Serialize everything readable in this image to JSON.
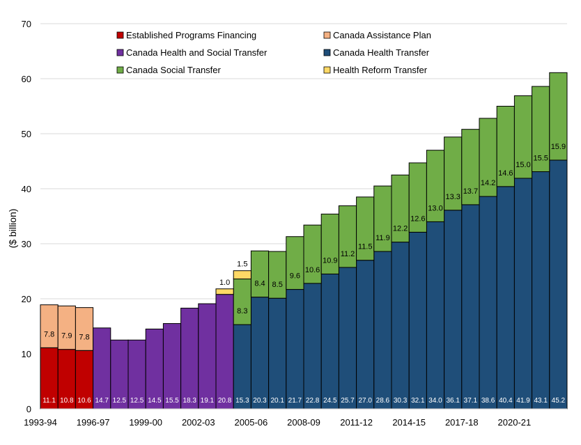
{
  "chart_data": {
    "type": "bar",
    "stacked": true,
    "title": "",
    "xlabel": "",
    "ylabel": "($ billion)",
    "ylim": [
      0,
      70
    ],
    "yticks": [
      0,
      10,
      20,
      30,
      40,
      50,
      60,
      70
    ],
    "grid": "horizontal",
    "legend_position": "top",
    "categories": [
      "1993-94",
      "1994-95",
      "1995-96",
      "1996-97",
      "1997-98",
      "1998-99",
      "1999-00",
      "2000-01",
      "2001-02",
      "2002-03",
      "2003-04",
      "2004-05",
      "2005-06",
      "2006-07",
      "2007-08",
      "2008-09",
      "2009-10",
      "2010-11",
      "2011-12",
      "2012-13",
      "2013-14",
      "2014-15",
      "2015-16",
      "2016-17",
      "2017-18",
      "2018-19",
      "2019-20",
      "2020-21",
      "2021-22",
      "2022-23"
    ],
    "xtick_labels": [
      "1993-94",
      "1996-97",
      "1999-00",
      "2002-03",
      "2005-06",
      "2008-09",
      "2011-12",
      "2014-15",
      "2017-18",
      "2020-21"
    ],
    "xtick_indices": [
      0,
      3,
      6,
      9,
      12,
      15,
      18,
      21,
      24,
      27
    ],
    "series": [
      {
        "name": "Established Programs Financing",
        "color": "#C00000",
        "values": [
          11.1,
          10.8,
          10.6,
          null,
          null,
          null,
          null,
          null,
          null,
          null,
          null,
          null,
          null,
          null,
          null,
          null,
          null,
          null,
          null,
          null,
          null,
          null,
          null,
          null,
          null,
          null,
          null,
          null,
          null,
          null
        ],
        "labels": [
          "11.1",
          "10.8",
          "10.6",
          null,
          null,
          null,
          null,
          null,
          null,
          null,
          null,
          null,
          null,
          null,
          null,
          null,
          null,
          null,
          null,
          null,
          null,
          null,
          null,
          null,
          null,
          null,
          null,
          null,
          null,
          null
        ]
      },
      {
        "name": "Canada Assistance Plan",
        "color": "#F4B183",
        "values": [
          7.8,
          7.9,
          7.8,
          null,
          null,
          null,
          null,
          null,
          null,
          null,
          null,
          null,
          null,
          null,
          null,
          null,
          null,
          null,
          null,
          null,
          null,
          null,
          null,
          null,
          null,
          null,
          null,
          null,
          null,
          null
        ],
        "labels": [
          "7.8",
          "7.9",
          "7.8",
          null,
          null,
          null,
          null,
          null,
          null,
          null,
          null,
          null,
          null,
          null,
          null,
          null,
          null,
          null,
          null,
          null,
          null,
          null,
          null,
          null,
          null,
          null,
          null,
          null,
          null,
          null
        ]
      },
      {
        "name": "Canada Health and Social Transfer",
        "color": "#7030A0",
        "values": [
          null,
          null,
          null,
          14.7,
          12.5,
          12.5,
          14.5,
          15.5,
          18.3,
          19.1,
          20.8,
          null,
          null,
          null,
          null,
          null,
          null,
          null,
          null,
          null,
          null,
          null,
          null,
          null,
          null,
          null,
          null,
          null,
          null,
          null
        ],
        "labels": [
          null,
          null,
          null,
          "14.7",
          "12.5",
          "12.5",
          "14.5",
          "15.5",
          "18.3",
          "19.1",
          "20.8",
          null,
          null,
          null,
          null,
          null,
          null,
          null,
          null,
          null,
          null,
          null,
          null,
          null,
          null,
          null,
          null,
          null,
          null,
          null
        ]
      },
      {
        "name": "Canada Health Transfer",
        "color": "#1F4E79",
        "values": [
          null,
          null,
          null,
          null,
          null,
          null,
          null,
          null,
          null,
          null,
          null,
          15.3,
          20.3,
          20.1,
          21.7,
          22.8,
          24.5,
          25.7,
          27.0,
          28.6,
          30.3,
          32.1,
          34.0,
          36.1,
          37.1,
          38.6,
          40.4,
          41.9,
          43.1,
          45.2
        ],
        "labels": [
          null,
          null,
          null,
          null,
          null,
          null,
          null,
          null,
          null,
          null,
          null,
          "15.3",
          "20.3",
          "20.1",
          "21.7",
          "22.8",
          "24.5",
          "25.7",
          "27.0",
          "28.6",
          "30.3",
          "32.1",
          "34.0",
          "36.1",
          "37.1",
          "38.6",
          "40.4",
          "41.9",
          "43.1",
          "45.2"
        ]
      },
      {
        "name": "Canada Social Transfer",
        "color": "#70AD47",
        "values": [
          null,
          null,
          null,
          null,
          null,
          null,
          null,
          null,
          null,
          null,
          null,
          8.3,
          8.4,
          8.5,
          9.6,
          10.6,
          10.9,
          11.2,
          11.5,
          11.9,
          12.2,
          12.6,
          13.0,
          13.3,
          13.7,
          14.2,
          14.6,
          15.0,
          15.5,
          15.9
        ],
        "labels": [
          null,
          null,
          null,
          null,
          null,
          null,
          null,
          null,
          null,
          null,
          null,
          "8.3",
          "8.4",
          "8.5",
          "9.6",
          "10.6",
          "10.9",
          "11.2",
          "11.5",
          "11.9",
          "12.2",
          "12.6",
          "13.0",
          "13.3",
          "13.7",
          "14.2",
          "14.6",
          "15.0",
          "15.5",
          "15.9"
        ]
      },
      {
        "name": "Health Reform Transfer",
        "color": "#FFD966",
        "values": [
          null,
          null,
          null,
          null,
          null,
          null,
          null,
          null,
          null,
          null,
          1.0,
          1.5,
          null,
          null,
          null,
          null,
          null,
          null,
          null,
          null,
          null,
          null,
          null,
          null,
          null,
          null,
          null,
          null,
          null,
          null
        ],
        "labels": [
          null,
          null,
          null,
          null,
          null,
          null,
          null,
          null,
          null,
          null,
          "1.0",
          "1.5",
          null,
          null,
          null,
          null,
          null,
          null,
          null,
          null,
          null,
          null,
          null,
          null,
          null,
          null,
          null,
          null,
          null,
          null
        ]
      }
    ],
    "legend_order": [
      0,
      1,
      2,
      3,
      4,
      5
    ]
  }
}
